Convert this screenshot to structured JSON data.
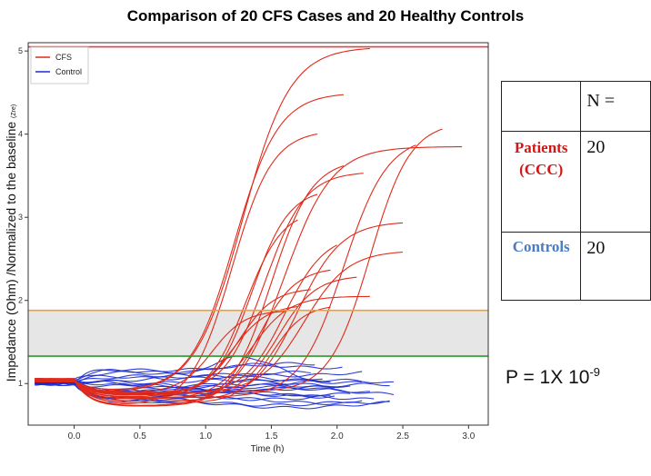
{
  "title": "Comparison of 20 CFS Cases and 20 Healthy Controls",
  "table": {
    "header": "N =",
    "rows": [
      {
        "label_line1": "Patients",
        "label_line2": "(CCC)",
        "value": "20"
      },
      {
        "label": "Controls",
        "value": "20"
      }
    ]
  },
  "pvalue": {
    "text": "P = 1X 10",
    "exponent": "-9"
  },
  "chart_data": {
    "type": "line",
    "title": "",
    "xlabel": "Time (h)",
    "ylabel": "Impedance (Ohm) /Normalized to the baseline",
    "ylabel_suffix": "(Zre)",
    "xlim": [
      -0.35,
      3.15
    ],
    "ylim": [
      0.5,
      5.1
    ],
    "xticks": [
      "0.0",
      "0.5",
      "1.0",
      "1.5",
      "2.0",
      "2.5",
      "3.0"
    ],
    "xtick_values": [
      0,
      0.5,
      1,
      1.5,
      2,
      2.5,
      3
    ],
    "yticks": [
      "1",
      "2",
      "3",
      "4",
      "5"
    ],
    "ytick_values": [
      1,
      2,
      3,
      4,
      5
    ],
    "grid": false,
    "legend": {
      "position": "top-left",
      "entries": [
        {
          "name": "CFS",
          "color": "#e02a1a"
        },
        {
          "name": "Control",
          "color": "#1a2ad0"
        }
      ]
    },
    "reference_lines": [
      {
        "y": 5.05,
        "color": "#e84040"
      },
      {
        "y": 1.88,
        "color": "#f0a030"
      },
      {
        "y": 1.33,
        "color": "#2a9a2a"
      }
    ],
    "shaded_band": {
      "y0": 1.33,
      "y1": 1.88,
      "color": "#e6e6e6"
    },
    "cfs_curves": [
      {
        "mid": 1.28,
        "rate": 5.5,
        "plateau": 5.05,
        "end": 2.25
      },
      {
        "mid": 1.22,
        "rate": 6.0,
        "plateau": 4.5,
        "end": 2.05
      },
      {
        "mid": 1.2,
        "rate": 6.5,
        "plateau": 4.05,
        "end": 1.85
      },
      {
        "mid": 1.6,
        "rate": 5.5,
        "plateau": 3.85,
        "end": 2.95
      },
      {
        "mid": 2.25,
        "rate": 6.5,
        "plateau": 4.15,
        "end": 2.8
      },
      {
        "mid": 2.05,
        "rate": 6.0,
        "plateau": 3.98,
        "end": 2.6
      },
      {
        "mid": 1.5,
        "rate": 6.5,
        "plateau": 3.7,
        "end": 2.05
      },
      {
        "mid": 1.45,
        "rate": 6.5,
        "plateau": 3.55,
        "end": 2.2
      },
      {
        "mid": 1.35,
        "rate": 7.0,
        "plateau": 3.35,
        "end": 1.85
      },
      {
        "mid": 1.3,
        "rate": 7.0,
        "plateau": 3.1,
        "end": 1.7
      },
      {
        "mid": 1.7,
        "rate": 6.0,
        "plateau": 2.95,
        "end": 2.5
      },
      {
        "mid": 1.6,
        "rate": 6.5,
        "plateau": 2.8,
        "end": 2.0
      },
      {
        "mid": 1.75,
        "rate": 6.0,
        "plateau": 2.6,
        "end": 2.5
      },
      {
        "mid": 1.4,
        "rate": 7.0,
        "plateau": 2.4,
        "end": 1.95
      },
      {
        "mid": 1.55,
        "rate": 7.0,
        "plateau": 2.3,
        "end": 2.15
      },
      {
        "mid": 1.25,
        "rate": 7.5,
        "plateau": 2.15,
        "end": 1.8
      },
      {
        "mid": 1.35,
        "rate": 7.0,
        "plateau": 2.05,
        "end": 2.25
      },
      {
        "mid": 1.2,
        "rate": 7.5,
        "plateau": 1.95,
        "end": 1.7
      },
      {
        "mid": 1.05,
        "rate": 8.0,
        "plateau": 1.88,
        "end": 1.6
      },
      {
        "mid": 1.5,
        "rate": 8.0,
        "plateau": 1.95,
        "end": 1.95
      }
    ],
    "control_curves": [
      {
        "level": 1.05,
        "end": 1.9,
        "hump": 0.3
      },
      {
        "level": 0.95,
        "end": 2.4,
        "hump": 0.0
      },
      {
        "level": 1.0,
        "end": 2.45,
        "hump": 0.05
      },
      {
        "level": 0.9,
        "end": 2.45,
        "hump": 0.0
      },
      {
        "level": 0.85,
        "end": 2.3,
        "hump": 0.0
      },
      {
        "level": 0.8,
        "end": 2.4,
        "hump": 0.0
      },
      {
        "level": 0.75,
        "end": 2.4,
        "hump": 0.0
      },
      {
        "level": 1.1,
        "end": 2.2,
        "hump": 0.05
      },
      {
        "level": 1.15,
        "end": 2.05,
        "hump": 0.1
      },
      {
        "level": 1.2,
        "end": 1.85,
        "hump": 0.0
      },
      {
        "level": 0.95,
        "end": 2.0,
        "hump": 0.0
      },
      {
        "level": 1.05,
        "end": 2.2,
        "hump": 0.0
      },
      {
        "level": 0.9,
        "end": 2.1,
        "hump": 0.0
      },
      {
        "level": 0.85,
        "end": 1.95,
        "hump": 0.0
      },
      {
        "level": 1.0,
        "end": 1.95,
        "hump": 0.0
      },
      {
        "level": 1.1,
        "end": 1.8,
        "hump": 0.0
      },
      {
        "level": 0.92,
        "end": 2.25,
        "hump": 0.0
      },
      {
        "level": 1.0,
        "end": 2.1,
        "hump": 0.0
      },
      {
        "level": 0.88,
        "end": 2.0,
        "hump": 0.0
      },
      {
        "level": 0.78,
        "end": 2.2,
        "hump": 0.0
      }
    ]
  }
}
